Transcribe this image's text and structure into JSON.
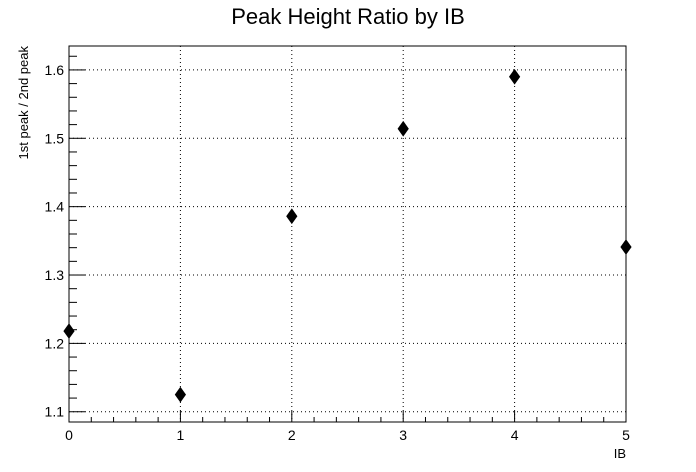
{
  "chart_data": {
    "type": "scatter",
    "title": "Peak Height Ratio by IB",
    "xlabel": "IB",
    "ylabel": "1st peak / 2nd peak",
    "xlim": [
      0,
      5
    ],
    "ylim": [
      1.085,
      1.635
    ],
    "xticks": [
      0,
      1,
      2,
      3,
      4,
      5
    ],
    "yticks": [
      1.1,
      1.2,
      1.3,
      1.4,
      1.5,
      1.6
    ],
    "xtick_labels": [
      "0",
      "1",
      "2",
      "3",
      "4",
      "5"
    ],
    "ytick_labels": [
      "1.1",
      "1.2",
      "1.3",
      "1.4",
      "1.5",
      "1.6"
    ],
    "grid": true,
    "marker": "diamond",
    "marker_color": "#000000",
    "points": [
      {
        "x": 0,
        "y": 1.218
      },
      {
        "x": 1,
        "y": 1.125
      },
      {
        "x": 2,
        "y": 1.386
      },
      {
        "x": 3,
        "y": 1.514
      },
      {
        "x": 4,
        "y": 1.59
      },
      {
        "x": 5,
        "y": 1.341
      }
    ]
  }
}
